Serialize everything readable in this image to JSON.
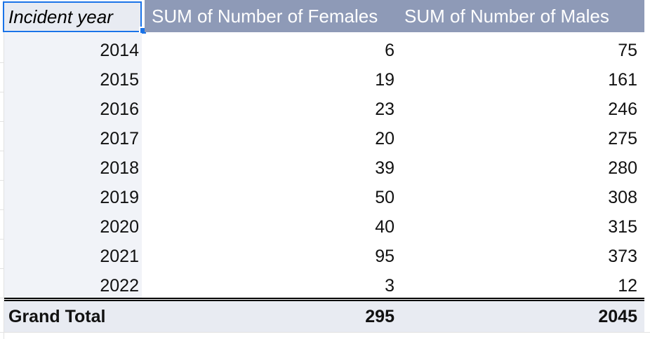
{
  "pivot": {
    "headers": {
      "row_field": "Incident year",
      "females": "SUM of Number of Females",
      "males": "SUM of Number of Males"
    },
    "rows": [
      {
        "year": "2014",
        "females": "6",
        "males": "75"
      },
      {
        "year": "2015",
        "females": "19",
        "males": "161"
      },
      {
        "year": "2016",
        "females": "23",
        "males": "246"
      },
      {
        "year": "2017",
        "females": "20",
        "males": "275"
      },
      {
        "year": "2018",
        "females": "39",
        "males": "280"
      },
      {
        "year": "2019",
        "females": "50",
        "males": "308"
      },
      {
        "year": "2020",
        "females": "40",
        "males": "315"
      },
      {
        "year": "2021",
        "females": "95",
        "males": "373"
      },
      {
        "year": "2022",
        "females": "3",
        "males": "12"
      }
    ],
    "grand_total": {
      "label": "Grand Total",
      "females": "295",
      "males": "2045"
    }
  },
  "colors": {
    "header_bg": "#8e9ab7",
    "selection": "#1a73e8",
    "total_bg": "#e8ebf2"
  }
}
